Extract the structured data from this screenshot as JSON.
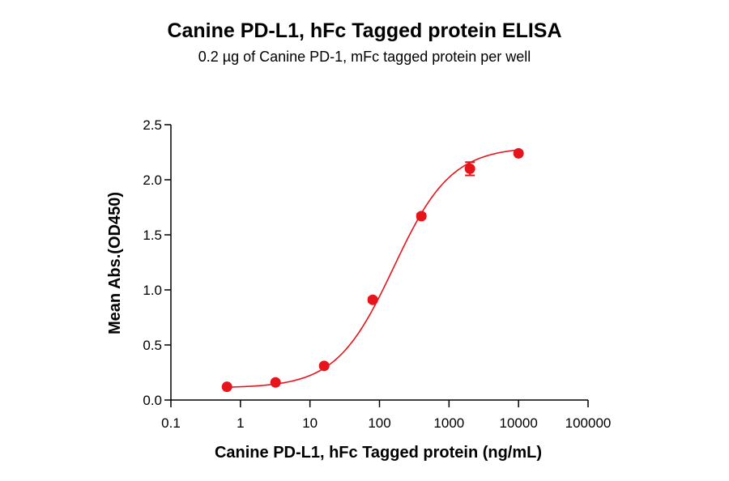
{
  "chart_data": {
    "type": "scatter",
    "title": "Canine PD-L1, hFc Tagged protein ELISA",
    "subtitle": "0.2 µg of Canine PD-1, mFc tagged protein per well",
    "xlabel": "Canine PD-L1, hFc Tagged protein (ng/mL)",
    "ylabel": "Mean Abs.(OD450)",
    "x_scale": "log",
    "xlim": [
      0.1,
      100000
    ],
    "ylim": [
      0,
      2.5
    ],
    "x_ticks": [
      "0.1",
      "1",
      "10",
      "100",
      "1000",
      "10000",
      "100000"
    ],
    "y_ticks": [
      "0.0",
      "0.5",
      "1.0",
      "1.5",
      "2.0",
      "2.5"
    ],
    "grid": false,
    "color": "#e8141b",
    "series": [
      {
        "x": [
          0.64,
          3.2,
          16,
          80,
          400,
          2000,
          10000
        ],
        "y": [
          0.12,
          0.16,
          0.31,
          0.91,
          1.67,
          2.1,
          2.24
        ],
        "error": [
          0.01,
          0.01,
          0.01,
          0.02,
          0.02,
          0.06,
          0.01
        ]
      }
    ],
    "fit_curve": true
  }
}
